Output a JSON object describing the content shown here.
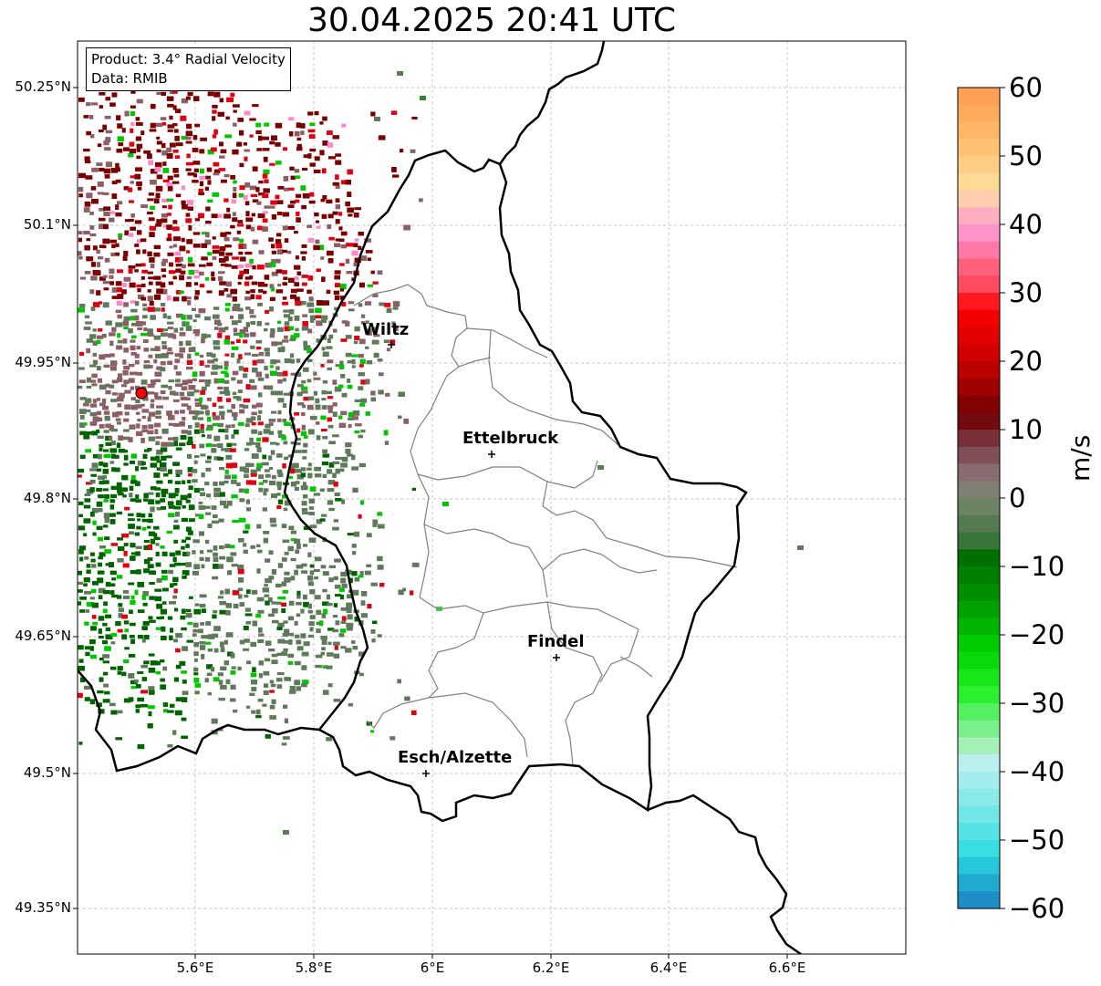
{
  "title": "30.04.2025 20:41 UTC",
  "info": {
    "product": "Product: 3.4° Radial Velocity",
    "data": "Data: RMIB"
  },
  "map": {
    "lon_range": [
      5.4,
      6.8
    ],
    "lat_range": [
      49.3,
      50.3
    ],
    "grid": true,
    "lat_ticks": [
      "50.25°N",
      "50.1°N",
      "49.95°N",
      "49.8°N",
      "49.65°N",
      "49.5°N",
      "49.35°N"
    ],
    "lon_ticks": [
      "5.6°E",
      "5.8°E",
      "6°E",
      "6.2°E",
      "6.4°E",
      "6.6°E"
    ],
    "cities": [
      {
        "name": "Wiltz",
        "lon": 5.93,
        "lat": 49.97
      },
      {
        "name": "Ettelbruck",
        "lon": 6.1,
        "lat": 49.85
      },
      {
        "name": "Findel",
        "lon": 6.21,
        "lat": 49.63
      },
      {
        "name": "Esch/Alzette",
        "lon": 5.99,
        "lat": 49.5
      }
    ],
    "radar_site": {
      "lon": 5.505,
      "lat": 49.915
    }
  },
  "colorbar": {
    "label": "m/s",
    "min": -60,
    "max": 60,
    "ticks": [
      "60",
      "50",
      "40",
      "30",
      "20",
      "10",
      "0",
      "−10",
      "−20",
      "−30",
      "−40",
      "−50",
      "−60"
    ]
  },
  "colors": {
    "approaching_dark_green": "#006400",
    "approaching_green": "#00c800",
    "near_zero_olive": "#5f7a5a",
    "near_zero_mauve": "#8a6066",
    "receding_dark_red": "#7a0000",
    "receding_red": "#e00010",
    "receding_pink": "#ff88c8",
    "border": "#000000",
    "canton_border": "#808080"
  }
}
